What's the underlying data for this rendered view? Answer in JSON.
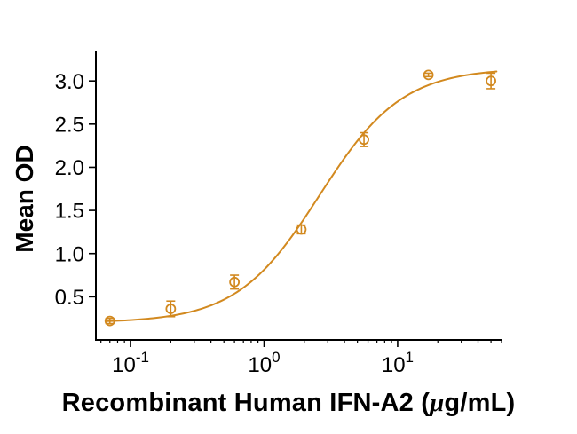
{
  "chart_data": {
    "type": "scatter",
    "title": "",
    "xlabel": "Recombinant Human IFN-A2 (μg/mL)",
    "xlabel_parts": {
      "prefix": "Recombinant Human IFN-A2 (",
      "mu": "μ",
      "suffix": "g/mL)"
    },
    "ylabel": "Mean OD",
    "x_scale": "log",
    "y_scale": "linear",
    "xlim": [
      0.055,
      60
    ],
    "ylim": [
      0,
      3.3
    ],
    "grid": false,
    "legend": false,
    "axis_color": "#000000",
    "background_color": "#ffffff",
    "x_ticks": [
      {
        "base": "10",
        "exp": "-1",
        "value": 0.1
      },
      {
        "base": "10",
        "exp": "0",
        "value": 1
      },
      {
        "base": "10",
        "exp": "1",
        "value": 10
      }
    ],
    "y_ticks": [
      {
        "label": "0.5",
        "value": 0.5
      },
      {
        "label": "1.0",
        "value": 1.0
      },
      {
        "label": "1.5",
        "value": 1.5
      },
      {
        "label": "2.0",
        "value": 2.0
      },
      {
        "label": "2.5",
        "value": 2.5
      },
      {
        "label": "3.0",
        "value": 3.0
      }
    ],
    "series": [
      {
        "name": "Mean OD",
        "color": "#D2891F",
        "marker": "open-circle",
        "points": [
          {
            "x": 0.07,
            "y": 0.22,
            "err": 0.03
          },
          {
            "x": 0.2,
            "y": 0.36,
            "err": 0.09
          },
          {
            "x": 0.6,
            "y": 0.67,
            "err": 0.08
          },
          {
            "x": 1.9,
            "y": 1.28,
            "err": 0.05
          },
          {
            "x": 5.6,
            "y": 2.32,
            "err": 0.08
          },
          {
            "x": 17,
            "y": 3.07,
            "err": 0.02
          },
          {
            "x": 50,
            "y": 3.0,
            "err": 0.09
          }
        ],
        "curve_fit": {
          "model": "4PL",
          "bottom": 0.2,
          "top": 3.15,
          "ec50": 2.6,
          "hill": 1.4,
          "x_range": [
            0.065,
            55
          ]
        }
      }
    ]
  }
}
